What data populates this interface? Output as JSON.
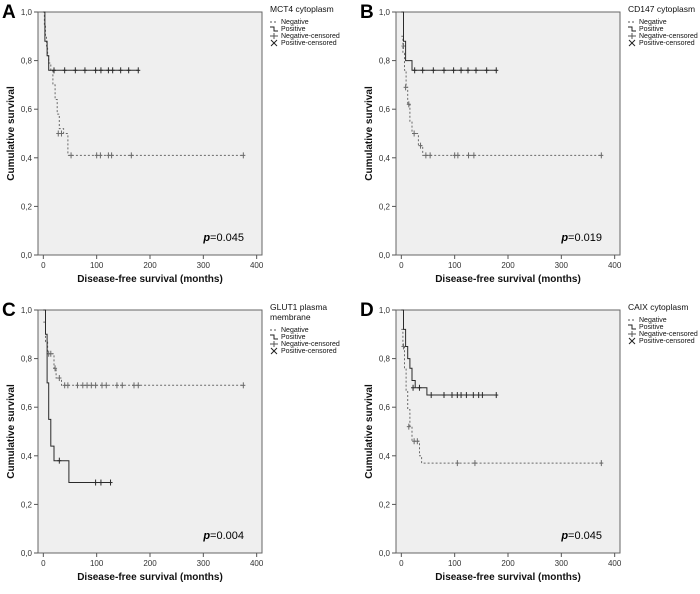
{
  "chart_data": [
    {
      "type": "line",
      "panel_label": "A",
      "title": "MCT4 cytoplasm",
      "title_lines": [
        "MCT4 cytoplasm"
      ],
      "xlabel": "Disease-free survival (months)",
      "ylabel": "Cumulative survival",
      "xlim": [
        -10,
        410
      ],
      "ylim": [
        0,
        1.0
      ],
      "x_ticks": [
        0,
        100,
        200,
        300,
        400
      ],
      "y_ticks": [
        0.0,
        0.2,
        0.4,
        0.6,
        0.8,
        1.0
      ],
      "x_tick_labels": [
        "0",
        "100",
        "200",
        "300",
        "400"
      ],
      "y_tick_labels": [
        "0,0",
        "0,2",
        "0,4",
        "0,6",
        "0,8",
        "1,0"
      ],
      "legend": [
        "Negative",
        "Positive",
        "Negative-censored",
        "Positive-censored"
      ],
      "legend_position": "top-right",
      "p_label": "p",
      "p_value": "=0.045",
      "series": [
        {
          "name": "Negative",
          "style": "dashed",
          "steps": [
            [
              0,
              1.0
            ],
            [
              2,
              0.95
            ],
            [
              4,
              0.9
            ],
            [
              6,
              0.86
            ],
            [
              8,
              0.82
            ],
            [
              10,
              0.79
            ],
            [
              14,
              0.76
            ],
            [
              18,
              0.7
            ],
            [
              22,
              0.64
            ],
            [
              26,
              0.58
            ],
            [
              30,
              0.52
            ],
            [
              38,
              0.5
            ],
            [
              46,
              0.41
            ],
            [
              375,
              0.41
            ]
          ],
          "censored": [
            [
              28,
              0.5
            ],
            [
              34,
              0.5
            ],
            [
              52,
              0.41
            ],
            [
              100,
              0.41
            ],
            [
              107,
              0.41
            ],
            [
              122,
              0.41
            ],
            [
              128,
              0.41
            ],
            [
              165,
              0.41
            ],
            [
              375,
              0.41
            ]
          ]
        },
        {
          "name": "Positive",
          "style": "solid",
          "steps": [
            [
              0,
              1.0
            ],
            [
              3,
              0.88
            ],
            [
              7,
              0.82
            ],
            [
              10,
              0.76
            ],
            [
              178,
              0.76
            ]
          ],
          "censored": [
            [
              20,
              0.76
            ],
            [
              40,
              0.76
            ],
            [
              60,
              0.76
            ],
            [
              78,
              0.76
            ],
            [
              98,
              0.76
            ],
            [
              108,
              0.76
            ],
            [
              122,
              0.76
            ],
            [
              130,
              0.76
            ],
            [
              145,
              0.76
            ],
            [
              160,
              0.76
            ],
            [
              178,
              0.76
            ]
          ]
        }
      ]
    },
    {
      "type": "line",
      "panel_label": "B",
      "title": "CD147 cytoplasm",
      "title_lines": [
        "CD147 cytoplasm"
      ],
      "xlabel": "Disease-free survival (months)",
      "ylabel": "Cumulative survival",
      "xlim": [
        -10,
        410
      ],
      "ylim": [
        0,
        1.0
      ],
      "x_ticks": [
        0,
        100,
        200,
        300,
        400
      ],
      "y_ticks": [
        0.0,
        0.2,
        0.4,
        0.6,
        0.8,
        1.0
      ],
      "x_tick_labels": [
        "0",
        "100",
        "200",
        "300",
        "400"
      ],
      "y_tick_labels": [
        "0,0",
        "0,2",
        "0,4",
        "0,6",
        "0,8",
        "1,0"
      ],
      "legend": [
        "Negative",
        "Positive",
        "Negative-censored",
        "Positive-censored"
      ],
      "legend_position": "top-right",
      "p_label": "p",
      "p_value": "=0.019",
      "series": [
        {
          "name": "Negative",
          "style": "dashed",
          "steps": [
            [
              0,
              0.9
            ],
            [
              3,
              0.83
            ],
            [
              6,
              0.76
            ],
            [
              9,
              0.69
            ],
            [
              12,
              0.62
            ],
            [
              16,
              0.55
            ],
            [
              20,
              0.5
            ],
            [
              32,
              0.45
            ],
            [
              40,
              0.41
            ],
            [
              375,
              0.41
            ]
          ],
          "censored": [
            [
              4,
              0.86
            ],
            [
              8,
              0.69
            ],
            [
              14,
              0.62
            ],
            [
              24,
              0.5
            ],
            [
              36,
              0.45
            ],
            [
              46,
              0.41
            ],
            [
              54,
              0.41
            ],
            [
              100,
              0.41
            ],
            [
              106,
              0.41
            ],
            [
              126,
              0.41
            ],
            [
              136,
              0.41
            ],
            [
              375,
              0.41
            ]
          ]
        },
        {
          "name": "Positive",
          "style": "solid",
          "steps": [
            [
              0,
              1.0
            ],
            [
              4,
              0.88
            ],
            [
              8,
              0.8
            ],
            [
              20,
              0.76
            ],
            [
              178,
              0.76
            ]
          ],
          "censored": [
            [
              25,
              0.76
            ],
            [
              40,
              0.76
            ],
            [
              60,
              0.76
            ],
            [
              80,
              0.76
            ],
            [
              98,
              0.76
            ],
            [
              112,
              0.76
            ],
            [
              125,
              0.76
            ],
            [
              140,
              0.76
            ],
            [
              160,
              0.76
            ],
            [
              178,
              0.76
            ]
          ]
        }
      ]
    },
    {
      "type": "line",
      "panel_label": "C",
      "title": "GLUT1 plasma membrane",
      "title_lines": [
        "GLUT1 plasma",
        "membrane"
      ],
      "xlabel": "Disease-free survival (months)",
      "ylabel": "Cumulative survival",
      "xlim": [
        -10,
        410
      ],
      "ylim": [
        0,
        1.0
      ],
      "x_ticks": [
        0,
        100,
        200,
        300,
        400
      ],
      "y_ticks": [
        0.0,
        0.2,
        0.4,
        0.6,
        0.8,
        1.0
      ],
      "x_tick_labels": [
        "0",
        "100",
        "200",
        "300",
        "400"
      ],
      "y_tick_labels": [
        "0,0",
        "0,2",
        "0,4",
        "0,6",
        "0,8",
        "1,0"
      ],
      "legend": [
        "Negative",
        "Positive",
        "Negative-censored",
        "Positive-censored"
      ],
      "legend_position": "top-right",
      "p_label": "p",
      "p_value": "=0.004",
      "series": [
        {
          "name": "Negative",
          "style": "dashed",
          "steps": [
            [
              0,
              0.95
            ],
            [
              4,
              0.87
            ],
            [
              8,
              0.82
            ],
            [
              20,
              0.76
            ],
            [
              24,
              0.72
            ],
            [
              34,
              0.69
            ],
            [
              375,
              0.69
            ]
          ],
          "censored": [
            [
              10,
              0.82
            ],
            [
              14,
              0.82
            ],
            [
              22,
              0.76
            ],
            [
              30,
              0.72
            ],
            [
              40,
              0.69
            ],
            [
              46,
              0.69
            ],
            [
              64,
              0.69
            ],
            [
              74,
              0.69
            ],
            [
              82,
              0.69
            ],
            [
              90,
              0.69
            ],
            [
              98,
              0.69
            ],
            [
              110,
              0.69
            ],
            [
              118,
              0.69
            ],
            [
              138,
              0.69
            ],
            [
              148,
              0.69
            ],
            [
              170,
              0.69
            ],
            [
              178,
              0.69
            ],
            [
              375,
              0.69
            ]
          ]
        },
        {
          "name": "Positive",
          "style": "solid",
          "steps": [
            [
              0,
              1.0
            ],
            [
              4,
              0.9
            ],
            [
              7,
              0.7
            ],
            [
              10,
              0.55
            ],
            [
              14,
              0.44
            ],
            [
              20,
              0.38
            ],
            [
              48,
              0.29
            ],
            [
              126,
              0.29
            ]
          ],
          "censored": [
            [
              30,
              0.38
            ],
            [
              98,
              0.29
            ],
            [
              108,
              0.29
            ],
            [
              126,
              0.29
            ]
          ]
        }
      ]
    },
    {
      "type": "line",
      "panel_label": "D",
      "title": "CAIX cytoplasm",
      "title_lines": [
        "CAIX cytoplasm"
      ],
      "xlabel": "Disease-free survival (months)",
      "ylabel": "Cumulative survival",
      "xlim": [
        -10,
        410
      ],
      "ylim": [
        0,
        1.0
      ],
      "x_ticks": [
        0,
        100,
        200,
        300,
        400
      ],
      "y_ticks": [
        0.0,
        0.2,
        0.4,
        0.6,
        0.8,
        1.0
      ],
      "x_tick_labels": [
        "0",
        "100",
        "200",
        "300",
        "400"
      ],
      "y_tick_labels": [
        "0,0",
        "0,2",
        "0,4",
        "0,6",
        "0,8",
        "1,0"
      ],
      "legend": [
        "Negative",
        "Positive",
        "Negative-censored",
        "Positive-censored"
      ],
      "legend_position": "top-right",
      "p_label": "p",
      "p_value": "=0.045",
      "series": [
        {
          "name": "Negative",
          "style": "dashed",
          "steps": [
            [
              0,
              0.92
            ],
            [
              3,
              0.85
            ],
            [
              6,
              0.76
            ],
            [
              9,
              0.67
            ],
            [
              12,
              0.59
            ],
            [
              16,
              0.52
            ],
            [
              20,
              0.46
            ],
            [
              34,
              0.4
            ],
            [
              38,
              0.37
            ],
            [
              375,
              0.37
            ]
          ],
          "censored": [
            [
              4,
              0.85
            ],
            [
              14,
              0.52
            ],
            [
              24,
              0.46
            ],
            [
              30,
              0.46
            ],
            [
              105,
              0.37
            ],
            [
              138,
              0.37
            ],
            [
              375,
              0.37
            ]
          ]
        },
        {
          "name": "Positive",
          "style": "solid",
          "steps": [
            [
              0,
              1.0
            ],
            [
              4,
              0.92
            ],
            [
              8,
              0.85
            ],
            [
              12,
              0.8
            ],
            [
              16,
              0.76
            ],
            [
              20,
              0.71
            ],
            [
              26,
              0.68
            ],
            [
              48,
              0.65
            ],
            [
              178,
              0.65
            ]
          ],
          "censored": [
            [
              22,
              0.68
            ],
            [
              34,
              0.68
            ],
            [
              56,
              0.65
            ],
            [
              80,
              0.65
            ],
            [
              95,
              0.65
            ],
            [
              105,
              0.65
            ],
            [
              112,
              0.65
            ],
            [
              122,
              0.65
            ],
            [
              135,
              0.65
            ],
            [
              145,
              0.65
            ],
            [
              152,
              0.65
            ],
            [
              178,
              0.65
            ]
          ]
        }
      ]
    }
  ]
}
